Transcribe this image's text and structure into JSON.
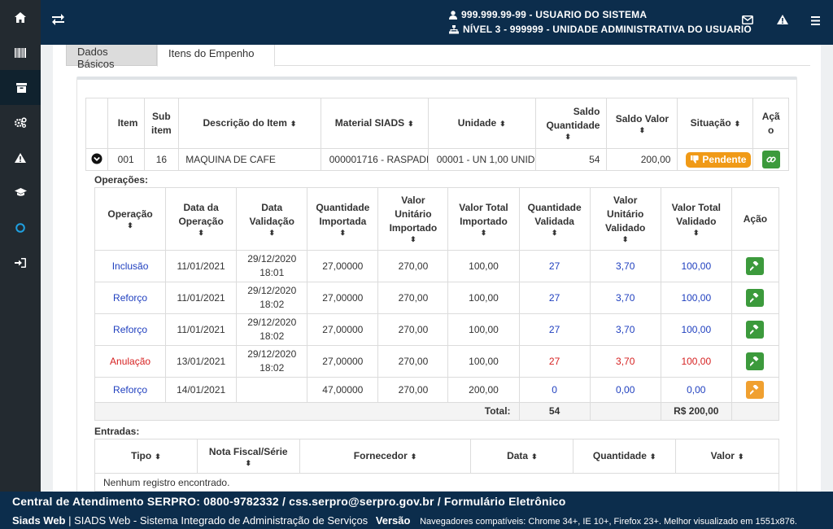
{
  "sidebar": {
    "items": [
      {
        "icon": "home-icon"
      },
      {
        "icon": "barcode-icon"
      },
      {
        "icon": "archive-icon",
        "active": true
      },
      {
        "icon": "cogs-icon"
      },
      {
        "icon": "warning-icon"
      },
      {
        "icon": "graduation-cap-icon"
      },
      {
        "icon": "circle-icon"
      },
      {
        "icon": "sign-in-icon"
      }
    ]
  },
  "header": {
    "user_line": "999.999.99-99 - USUARIO DO SISTEMA",
    "unit_line": "NÍVEL 3 - 999999 - UNIDADE ADMINISTRATIVA DO USUARIO",
    "colors": {
      "bar": "#0c2d4c"
    }
  },
  "tabs": [
    {
      "label": "Dados Básicos"
    },
    {
      "label": "Itens do Empenho",
      "active": true
    }
  ],
  "items_table": {
    "headers": {
      "item": "Item",
      "subitem": "Sub item",
      "descricao": "Descrição do Item",
      "material": "Material SIADS",
      "unidade": "Unidade",
      "saldo_qtd": "Saldo Quantidade",
      "saldo_valor": "Saldo Valor",
      "situacao": "Situação",
      "acao": "Ação"
    },
    "row": {
      "item": "001",
      "subitem": "16",
      "descricao": "MAQUINA DE CAFE",
      "material": "000001716 - RASPADI",
      "unidade": "00001 - UN 1,00 UNID",
      "saldo_qtd": "54",
      "saldo_valor": "200,00",
      "situacao": "Pendente"
    }
  },
  "operacoes": {
    "label": "Operações:",
    "headers": {
      "operacao": "Operação",
      "data_op": "Data da Operação",
      "data_val": "Data Validação",
      "qtd_imp": "Quantidade Importada",
      "vu_imp": "Valor Unitário Importado",
      "vt_imp": "Valor Total Importado",
      "qtd_val": "Quantidade Validada",
      "vu_val": "Valor Unitário Validado",
      "vt_val": "Valor Total Validado",
      "acao": "Ação"
    },
    "rows": [
      {
        "operacao": "Inclusão",
        "data_op": "11/01/2021",
        "data_val_d": "29/12/2020",
        "data_val_h": "18:01",
        "qtd_imp": "27,00000",
        "vu_imp": "270,00",
        "vt_imp": "100,00",
        "qtd_val": "27",
        "vu_val": "3,70",
        "vt_val": "100,00",
        "color": "blue",
        "btn": "green"
      },
      {
        "operacao": "Reforço",
        "data_op": "11/01/2021",
        "data_val_d": "29/12/2020",
        "data_val_h": "18:02",
        "qtd_imp": "27,00000",
        "vu_imp": "270,00",
        "vt_imp": "100,00",
        "qtd_val": "27",
        "vu_val": "3,70",
        "vt_val": "100,00",
        "color": "blue",
        "btn": "green"
      },
      {
        "operacao": "Reforço",
        "data_op": "11/01/2021",
        "data_val_d": "29/12/2020",
        "data_val_h": "18:02",
        "qtd_imp": "27,00000",
        "vu_imp": "270,00",
        "vt_imp": "100,00",
        "qtd_val": "27",
        "vu_val": "3,70",
        "vt_val": "100,00",
        "color": "blue",
        "btn": "green"
      },
      {
        "operacao": "Anulação",
        "data_op": "13/01/2021",
        "data_val_d": "29/12/2020",
        "data_val_h": "18:02",
        "qtd_imp": "27,00000",
        "vu_imp": "270,00",
        "vt_imp": "100,00",
        "qtd_val": "27",
        "vu_val": "3,70",
        "vt_val": "100,00",
        "color": "red",
        "btn": "green"
      },
      {
        "operacao": "Reforço",
        "data_op": "14/01/2021",
        "data_val_d": "",
        "data_val_h": "",
        "qtd_imp": "47,00000",
        "vu_imp": "270,00",
        "vt_imp": "200,00",
        "qtd_val": "0",
        "vu_val": "0,00",
        "vt_val": "0,00",
        "color": "blue",
        "btn": "orange"
      }
    ],
    "total_label": "Total:",
    "total_qtd": "54",
    "total_valor": "R$ 200,00"
  },
  "entradas": {
    "label": "Entradas:",
    "headers": {
      "tipo": "Tipo",
      "nota": "Nota Fiscal/Série",
      "fornecedor": "Fornecedor",
      "data": "Data",
      "quantidade": "Quantidade",
      "valor": "Valor"
    },
    "empty": "Nenhum registro encontrado."
  },
  "footer": {
    "line1": "Central de Atendimento SERPRO: 0800-9782332 / css.serpro@serpro.gov.br / Formulário Eletrônico",
    "app": "Siads Web",
    "app_desc": "SIADS Web - Sistema Integrado de Administração de Serviços",
    "version_label": "Versão",
    "browsers": "Navegadores compatíveis: Chrome 34+, IE 10+, Firefox 23+. Melhor visualizado em 1551x876."
  },
  "colors": {
    "blue_text": "#1f3fbf",
    "red_text": "#d62222",
    "green_btn": "#3c9a3c",
    "orange_btn": "#f0a030",
    "pending": "#f09a17"
  }
}
